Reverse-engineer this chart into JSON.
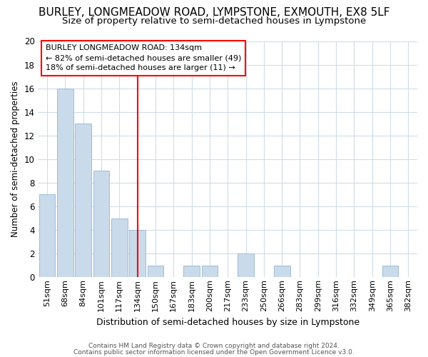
{
  "title": "BURLEY, LONGMEADOW ROAD, LYMPSTONE, EXMOUTH, EX8 5LF",
  "subtitle": "Size of property relative to semi-detached houses in Lympstone",
  "xlabel": "Distribution of semi-detached houses by size in Lympstone",
  "ylabel": "Number of semi-detached properties",
  "bins": [
    "51sqm",
    "68sqm",
    "84sqm",
    "101sqm",
    "117sqm",
    "134sqm",
    "150sqm",
    "167sqm",
    "183sqm",
    "200sqm",
    "217sqm",
    "233sqm",
    "250sqm",
    "266sqm",
    "283sqm",
    "299sqm",
    "316sqm",
    "332sqm",
    "349sqm",
    "365sqm",
    "382sqm"
  ],
  "values": [
    7,
    16,
    13,
    9,
    5,
    4,
    1,
    0,
    1,
    1,
    0,
    2,
    0,
    1,
    0,
    0,
    0,
    0,
    0,
    1,
    0
  ],
  "bar_color": "#c9daea",
  "bar_edge_color": "#a0bcd8",
  "red_line_index": 5,
  "red_line_label": "BURLEY LONGMEADOW ROAD: 134sqm",
  "annotation_line1": "← 82% of semi-detached houses are smaller (49)",
  "annotation_line2": "18% of semi-detached houses are larger (11) →",
  "ylim": [
    0,
    20
  ],
  "yticks": [
    0,
    2,
    4,
    6,
    8,
    10,
    12,
    14,
    16,
    18,
    20
  ],
  "footer1": "Contains HM Land Registry data © Crown copyright and database right 2024.",
  "footer2": "Contains public sector information licensed under the Open Government Licence v3.0.",
  "bg_color": "#ffffff",
  "plot_bg_color": "#ffffff",
  "grid_color": "#d0dce8",
  "title_fontsize": 11,
  "subtitle_fontsize": 9.5
}
